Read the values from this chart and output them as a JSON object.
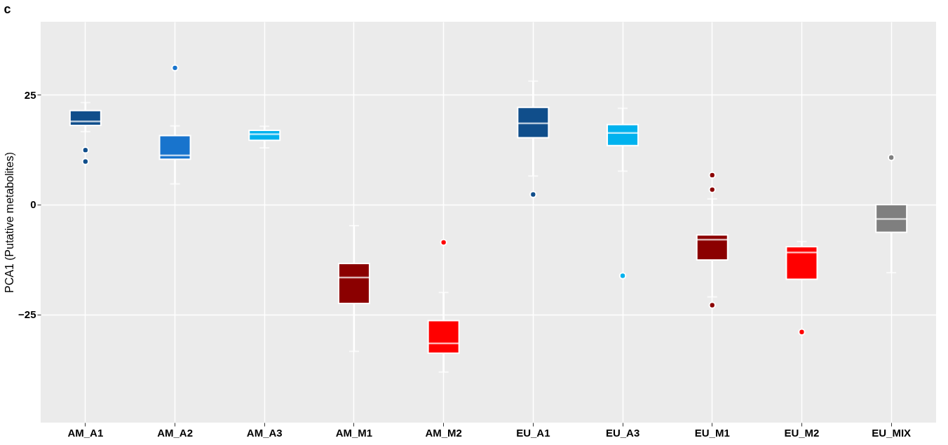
{
  "chart_data": {
    "type": "box",
    "title": "c",
    "ylabel": "PCA1 (Putative metabolites)",
    "categories": [
      "AM_A1",
      "AM_A2",
      "AM_A3",
      "AM_M1",
      "AM_M2",
      "EU_A1",
      "EU_A3",
      "EU_M1",
      "EU_M2",
      "EU_MIX"
    ],
    "colors": [
      "#104e8b",
      "#1874cd",
      "#00b2ee",
      "#8b0000",
      "#ff0000",
      "#104e8b",
      "#00b2ee",
      "#8b0000",
      "#ff0000",
      "#7f7f7f"
    ],
    "boxes": [
      {
        "low": 16.6,
        "q1": 18.0,
        "median": 18.9,
        "q3": 21.4,
        "high": 23.2,
        "outliers": [
          12.4,
          9.8
        ]
      },
      {
        "low": 4.7,
        "q1": 10.3,
        "median": 11.2,
        "q3": 15.7,
        "high": 17.9,
        "outliers": [
          31.1
        ]
      },
      {
        "low": 12.9,
        "q1": 14.6,
        "median": 16.0,
        "q3": 16.9,
        "high": 17.8
      },
      {
        "low": -33.4,
        "q1": -22.5,
        "median": -16.6,
        "q3": -13.4,
        "high": -4.8
      },
      {
        "low": -38.1,
        "q1": -33.8,
        "median": -31.6,
        "q3": -26.4,
        "high": -20.0,
        "outliers": [
          -8.6
        ]
      },
      {
        "low": 6.5,
        "q1": 15.2,
        "median": 18.5,
        "q3": 22.1,
        "high": 28.1,
        "outliers": [
          2.3
        ]
      },
      {
        "low": 7.6,
        "q1": 13.4,
        "median": 16.3,
        "q3": 18.2,
        "high": 21.9,
        "outliers": [
          -16.2
        ]
      },
      {
        "low": -21.0,
        "q1": -12.6,
        "median": -8.0,
        "q3": -6.9,
        "high": 1.3,
        "outliers": [
          6.7,
          3.4,
          -22.9
        ]
      },
      {
        "low": -17.0,
        "q1": -17.0,
        "median": -10.9,
        "q3": -9.6,
        "high": -8.4,
        "outliers": [
          -29.0
        ]
      },
      {
        "low": -15.5,
        "q1": -6.3,
        "median": -3.3,
        "q3": 0.0,
        "high": 0.0,
        "outliers": [
          10.7
        ]
      }
    ],
    "ylim": [
      -49.6,
      41.6
    ],
    "yticks": [
      -25,
      0,
      25
    ],
    "grid": true
  }
}
